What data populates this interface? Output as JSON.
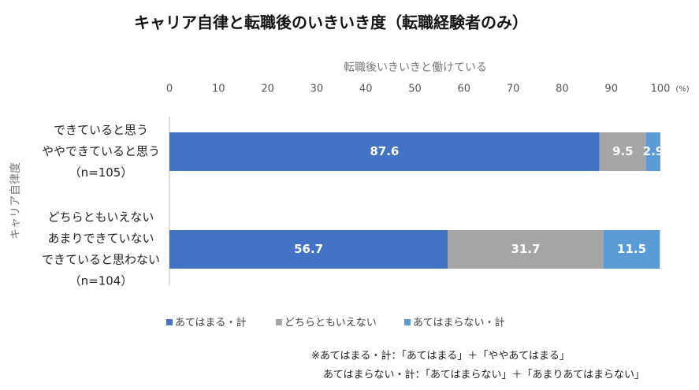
{
  "chart_data": {
    "type": "stacked_barh",
    "title": "キャリア自律と転職後のいきいき度（転職経験者のみ）",
    "xlabel": "転職後いきいきと働けている",
    "x_unit": "(%)",
    "ylabel": "キャリア自律度",
    "categories": [
      [
        "できていると思う",
        "ややできていると思う",
        "（n=105）"
      ],
      [
        "どちらともいえない",
        "あまりできていない",
        "できていると思わない",
        "（n=104）"
      ]
    ],
    "series": [
      {
        "name": "あてはまる・計",
        "color": "#4472c4",
        "values": [
          87.6,
          56.7
        ]
      },
      {
        "name": "どちらともいえない",
        "color": "#a5a5a5",
        "values": [
          9.5,
          31.7
        ]
      },
      {
        "name": "あてはまらない・計",
        "color": "#5b9bd5",
        "values": [
          2.9,
          11.5
        ]
      }
    ],
    "xlim": [
      0,
      100
    ],
    "xticks": [
      0,
      10,
      20,
      30,
      40,
      50,
      60,
      70,
      80,
      90,
      100
    ],
    "grid": false,
    "notes": [
      "※あてはまる・計：「あてはまる」＋「ややあてはまる」",
      "あてはまらない・計：「あてはまらない」＋「あまりあてはまらない」"
    ]
  }
}
